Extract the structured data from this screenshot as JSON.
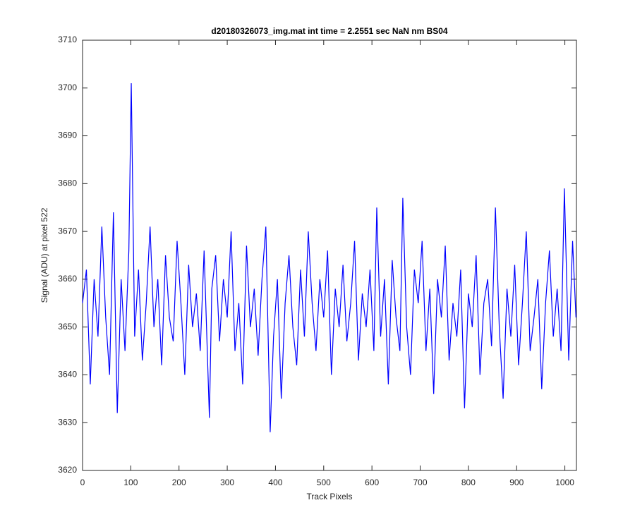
{
  "chart_data": {
    "type": "line",
    "title": "d20180326073_img.mat int time = 2.2551 sec  NaN nm BS04",
    "xlabel": "Track Pixels",
    "ylabel": "Signal (ADU) at pixel 522",
    "x": [
      0,
      8,
      16,
      24,
      32,
      40,
      48,
      56,
      64,
      72,
      80,
      88,
      96,
      101,
      108,
      116,
      124,
      132,
      140,
      148,
      156,
      164,
      172,
      180,
      188,
      196,
      204,
      212,
      220,
      228,
      236,
      244,
      252,
      263,
      268,
      276,
      284,
      292,
      300,
      308,
      316,
      324,
      332,
      340,
      348,
      356,
      364,
      372,
      380,
      389,
      396,
      404,
      412,
      420,
      428,
      436,
      444,
      452,
      460,
      468,
      476,
      484,
      492,
      500,
      508,
      516,
      524,
      532,
      540,
      548,
      556,
      564,
      572,
      580,
      588,
      596,
      604,
      610,
      618,
      626,
      634,
      642,
      650,
      658,
      664,
      672,
      680,
      688,
      696,
      704,
      712,
      720,
      728,
      736,
      744,
      752,
      760,
      768,
      776,
      784,
      792,
      800,
      808,
      816,
      824,
      832,
      840,
      848,
      856,
      864,
      872,
      880,
      888,
      896,
      904,
      912,
      920,
      928,
      936,
      944,
      952,
      960,
      968,
      976,
      984,
      992,
      999,
      1008,
      1016,
      1023
    ],
    "series": [
      {
        "name": "signal",
        "color": "#0000ff",
        "values": [
          3655,
          3662,
          3638,
          3660,
          3648,
          3671,
          3652,
          3640,
          3674,
          3632,
          3660,
          3645,
          3666,
          3701,
          3648,
          3662,
          3643,
          3655,
          3671,
          3650,
          3660,
          3642,
          3665,
          3652,
          3647,
          3668,
          3655,
          3640,
          3663,
          3650,
          3657,
          3645,
          3666,
          3631,
          3658,
          3665,
          3647,
          3660,
          3652,
          3670,
          3645,
          3655,
          3638,
          3667,
          3650,
          3658,
          3644,
          3660,
          3671,
          3628,
          3648,
          3660,
          3635,
          3655,
          3665,
          3650,
          3642,
          3662,
          3648,
          3670,
          3655,
          3645,
          3660,
          3652,
          3666,
          3640,
          3658,
          3650,
          3663,
          3647,
          3655,
          3668,
          3643,
          3657,
          3650,
          3662,
          3645,
          3675,
          3648,
          3660,
          3638,
          3664,
          3652,
          3645,
          3677,
          3650,
          3640,
          3662,
          3655,
          3668,
          3645,
          3658,
          3636,
          3660,
          3652,
          3667,
          3643,
          3655,
          3648,
          3662,
          3633,
          3657,
          3650,
          3665,
          3640,
          3655,
          3660,
          3646,
          3675,
          3650,
          3635,
          3658,
          3648,
          3663,
          3642,
          3655,
          3670,
          3645,
          3652,
          3660,
          3637,
          3655,
          3666,
          3648,
          3658,
          3645,
          3679,
          3643,
          3668,
          3652
        ]
      }
    ],
    "xlim": [
      0,
      1024
    ],
    "ylim": [
      3620,
      3710
    ],
    "xticks": [
      0,
      100,
      200,
      300,
      400,
      500,
      600,
      700,
      800,
      900,
      1000
    ],
    "yticks": [
      3620,
      3630,
      3640,
      3650,
      3660,
      3670,
      3680,
      3690,
      3700,
      3710
    ],
    "grid": false
  }
}
